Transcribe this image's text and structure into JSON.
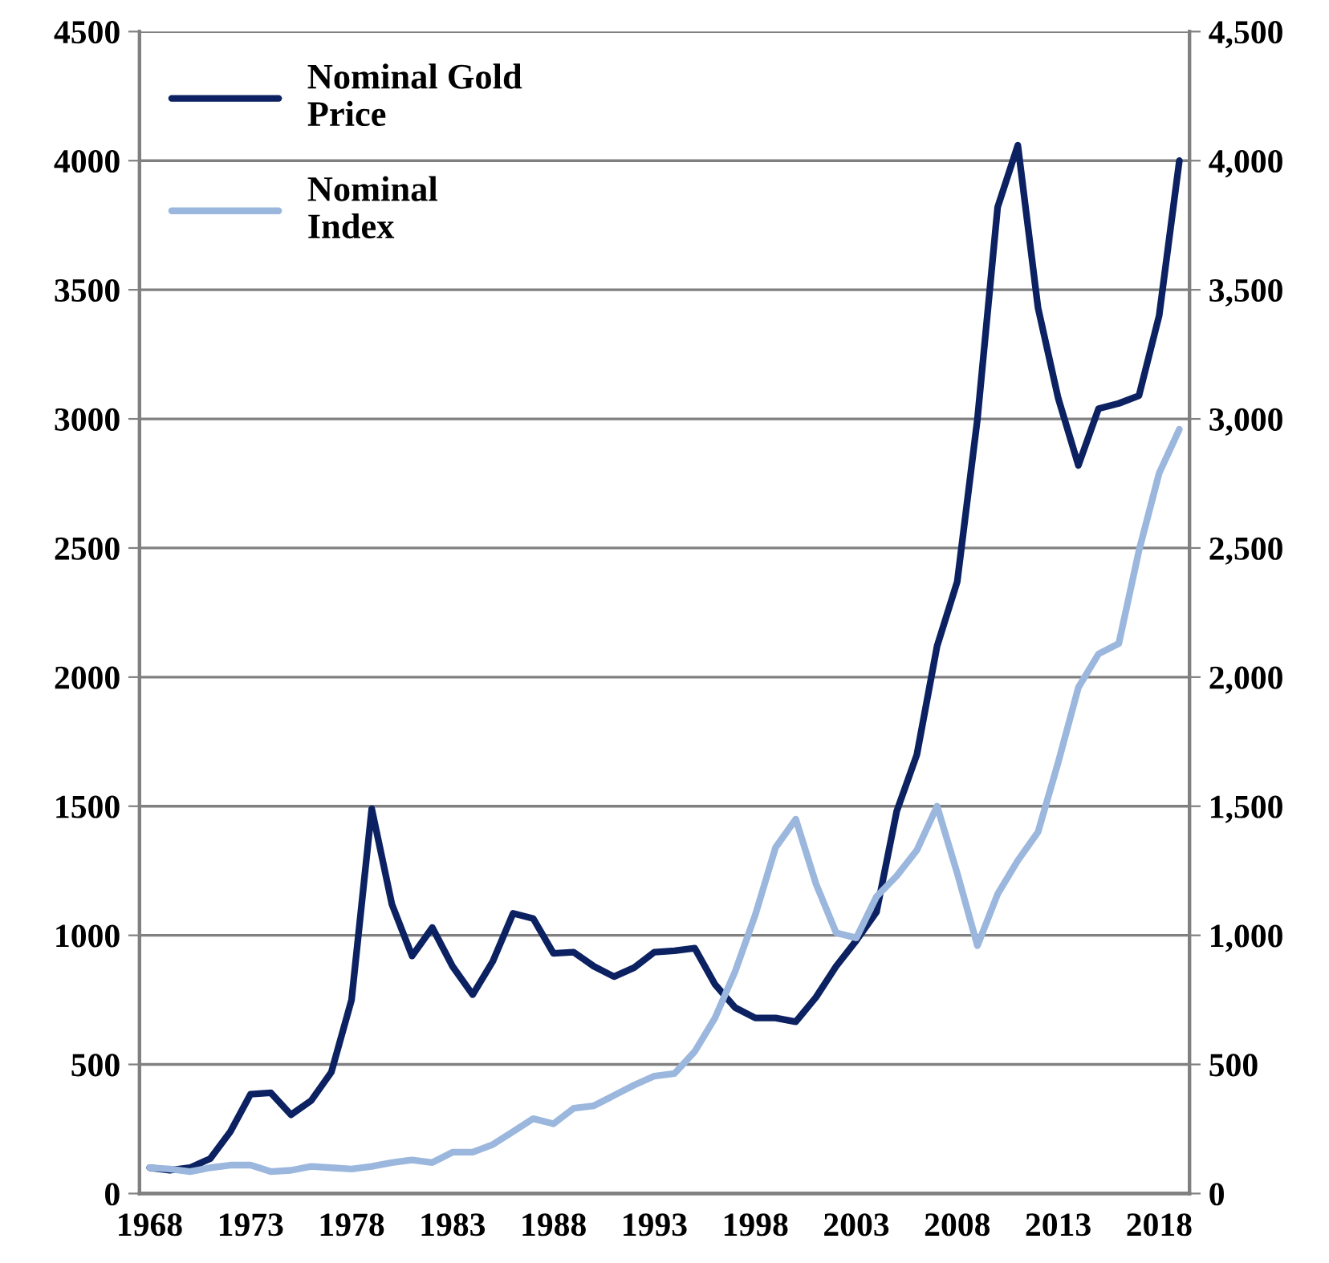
{
  "chart_data": {
    "type": "line",
    "categories": [
      "1968",
      null,
      null,
      null,
      null,
      "1973",
      null,
      null,
      null,
      null,
      "1978",
      null,
      null,
      null,
      null,
      "1983",
      null,
      null,
      null,
      null,
      "1988",
      null,
      null,
      null,
      null,
      "1993",
      null,
      null,
      null,
      null,
      "1998",
      null,
      null,
      null,
      null,
      "2003",
      null,
      null,
      null,
      null,
      "2008",
      null,
      null,
      null,
      null,
      "2013",
      null,
      null,
      null,
      null,
      "2018",
      null
    ],
    "series": [
      {
        "name": "Nominal Gold\nPrice",
        "color": "#0b2161",
        "values": [
          100,
          90,
          100,
          135,
          240,
          385,
          390,
          305,
          360,
          470,
          750,
          1490,
          1120,
          920,
          1030,
          880,
          770,
          900,
          1085,
          1065,
          930,
          935,
          880,
          840,
          875,
          935,
          940,
          950,
          810,
          720,
          680,
          680,
          665,
          760,
          880,
          980,
          1090,
          1480,
          1700,
          2120,
          2370,
          3000,
          3820,
          4060,
          3430,
          3080,
          2820,
          3040,
          3060,
          3090,
          3400,
          4000
        ]
      },
      {
        "name": "Nominal\nIndex",
        "color": "#9bb7dd",
        "values": [
          100,
          95,
          85,
          100,
          110,
          110,
          85,
          90,
          105,
          100,
          95,
          105,
          120,
          130,
          120,
          160,
          160,
          190,
          240,
          290,
          270,
          330,
          340,
          380,
          420,
          455,
          465,
          550,
          680,
          860,
          1080,
          1340,
          1450,
          1200,
          1010,
          990,
          1150,
          1230,
          1330,
          1500,
          1240,
          960,
          1160,
          1290,
          1400,
          1670,
          1960,
          2090,
          2130,
          2490,
          2790,
          2960
        ]
      }
    ],
    "ylim": [
      0,
      4500
    ],
    "yticks": [
      0,
      500,
      1000,
      1500,
      2000,
      2500,
      3000,
      3500,
      4000,
      4500
    ],
    "y2lim": [
      0,
      4500
    ],
    "y2ticks": [
      0,
      500,
      {
        "value": 1000,
        "label": "1,000"
      },
      {
        "value": 1500,
        "label": "1,500"
      },
      {
        "value": 2000,
        "label": "2,000"
      },
      {
        "value": 2500,
        "label": "2,500"
      },
      {
        "value": 3000,
        "label": "3,000"
      },
      {
        "value": 3500,
        "label": "3,500"
      },
      {
        "value": 4000,
        "label": "4,000"
      },
      {
        "value": 4500,
        "label": "4,500"
      }
    ],
    "grid": "y",
    "legend": "top left",
    "marker": "none",
    "line_style": "solid"
  }
}
